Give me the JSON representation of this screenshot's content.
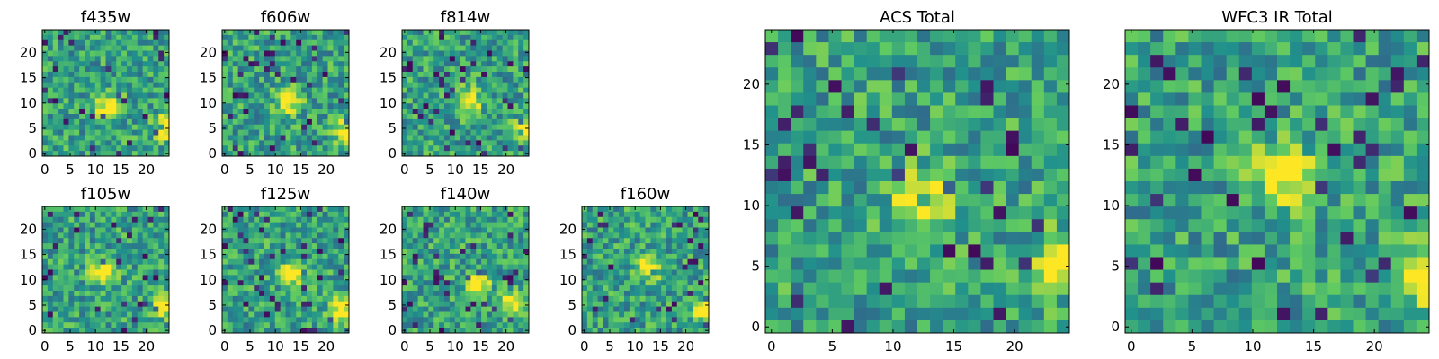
{
  "figure": {
    "colormap": "viridis",
    "colormap_stops": [
      "#440154",
      "#3b528b",
      "#21918c",
      "#5ec962",
      "#fde725"
    ]
  },
  "chart_data": [
    {
      "type": "heatmap",
      "title": "f435w",
      "xticks": [
        "0",
        "5",
        "10",
        "15",
        "20"
      ],
      "yticks": [
        "0",
        "5",
        "10",
        "15",
        "20"
      ],
      "xlim": [
        0,
        24
      ],
      "ylim": [
        0,
        24
      ],
      "grid": "24x24",
      "bright_regions": [
        {
          "x": 12,
          "y": 10
        },
        {
          "x": 23,
          "y": 6
        }
      ]
    },
    {
      "type": "heatmap",
      "title": "f606w",
      "xticks": [
        "0",
        "5",
        "10",
        "15",
        "20"
      ],
      "yticks": [
        "0",
        "5",
        "10",
        "15",
        "20"
      ],
      "xlim": [
        0,
        24
      ],
      "ylim": [
        0,
        24
      ],
      "grid": "24x24",
      "bright_regions": [
        {
          "x": 12,
          "y": 11
        },
        {
          "x": 23,
          "y": 5
        }
      ]
    },
    {
      "type": "heatmap",
      "title": "f814w",
      "xticks": [
        "0",
        "5",
        "10",
        "15",
        "20"
      ],
      "yticks": [
        "0",
        "5",
        "10",
        "15",
        "20"
      ],
      "xlim": [
        0,
        24
      ],
      "ylim": [
        0,
        24
      ],
      "grid": "24x24",
      "bright_regions": [
        {
          "x": 12,
          "y": 11
        },
        {
          "x": 23,
          "y": 5
        }
      ]
    },
    {
      "type": "heatmap",
      "title": "f105w",
      "xticks": [
        "0",
        "5",
        "10",
        "15",
        "20"
      ],
      "yticks": [
        "0",
        "5",
        "10",
        "15",
        "20"
      ],
      "xlim": [
        0,
        24
      ],
      "ylim": [
        0,
        24
      ],
      "grid": "24x24",
      "bright_regions": [
        {
          "x": 11,
          "y": 12
        },
        {
          "x": 23,
          "y": 6
        }
      ]
    },
    {
      "type": "heatmap",
      "title": "f125w",
      "xticks": [
        "0",
        "5",
        "10",
        "15",
        "20"
      ],
      "yticks": [
        "0",
        "5",
        "10",
        "15",
        "20"
      ],
      "xlim": [
        0,
        24
      ],
      "ylim": [
        0,
        24
      ],
      "grid": "24x24",
      "bright_regions": [
        {
          "x": 13,
          "y": 12
        },
        {
          "x": 22,
          "y": 5
        }
      ]
    },
    {
      "type": "heatmap",
      "title": "f140w",
      "xticks": [
        "0",
        "5",
        "10",
        "15",
        "20"
      ],
      "yticks": [
        "0",
        "5",
        "10",
        "15",
        "20"
      ],
      "xlim": [
        0,
        24
      ],
      "ylim": [
        0,
        24
      ],
      "grid": "24x24",
      "bright_regions": [
        {
          "x": 14,
          "y": 10
        },
        {
          "x": 21,
          "y": 6
        }
      ]
    },
    {
      "type": "heatmap",
      "title": "f160w",
      "xticks": [
        "0",
        "5",
        "10",
        "15",
        "20"
      ],
      "yticks": [
        "0",
        "5",
        "10",
        "15",
        "20"
      ],
      "xlim": [
        0,
        24
      ],
      "ylim": [
        0,
        24
      ],
      "grid": "24x24",
      "bright_regions": [
        {
          "x": 12,
          "y": 13
        },
        {
          "x": 23,
          "y": 5
        }
      ]
    },
    {
      "type": "heatmap",
      "title": "ACS Total",
      "xticks": [
        "0",
        "5",
        "10",
        "15",
        "20"
      ],
      "yticks": [
        "0",
        "5",
        "10",
        "15",
        "20"
      ],
      "xlim": [
        0,
        24
      ],
      "ylim": [
        0,
        24
      ],
      "grid": "24x24",
      "bright_regions": [
        {
          "x": 12,
          "y": 11
        },
        {
          "x": 23,
          "y": 6
        }
      ]
    },
    {
      "type": "heatmap",
      "title": "WFC3 IR Total",
      "xticks": [
        "0",
        "5",
        "10",
        "15",
        "20"
      ],
      "yticks": [
        "0",
        "5",
        "10",
        "15",
        "20"
      ],
      "xlim": [
        0,
        24
      ],
      "ylim": [
        0,
        24
      ],
      "grid": "24x24",
      "bright_regions": [
        {
          "x": 12,
          "y": 13
        },
        {
          "x": 23,
          "y": 5
        }
      ]
    }
  ]
}
